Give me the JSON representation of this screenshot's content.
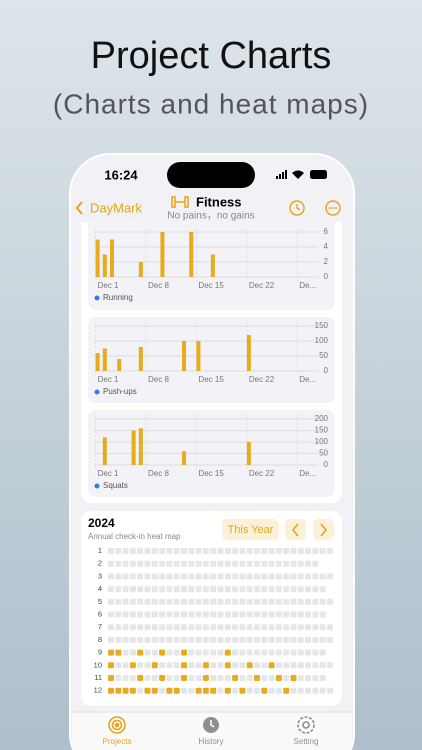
{
  "header": {
    "title": "Project Charts",
    "subtitle": "(Charts and heat maps)"
  },
  "status": {
    "time": "16:24"
  },
  "nav": {
    "back": "DayMark",
    "title": "Fitness",
    "subtitle": "No pains，no gains"
  },
  "chart_data": [
    {
      "type": "bar",
      "x": [
        1,
        2,
        3,
        7,
        10,
        14,
        17
      ],
      "series": [
        {
          "name": "Running",
          "color": "#e6ab1e",
          "legend_color": "#2f7fe6",
          "values": [
            5,
            3,
            5,
            2,
            6,
            6,
            3
          ]
        }
      ],
      "xlim": [
        0.5,
        31.6
      ],
      "xticks": [
        {
          "value": 1,
          "label": "Dec 1"
        },
        {
          "value": 8,
          "label": "Dec 8"
        },
        {
          "value": 15,
          "label": "Dec 15"
        },
        {
          "value": 22,
          "label": "Dec 22"
        },
        {
          "value": 29,
          "label": "De..."
        }
      ],
      "ylim": [
        0,
        6
      ],
      "yticks": [
        0,
        2,
        4,
        6
      ],
      "grid": true
    },
    {
      "type": "bar",
      "x": [
        1,
        2,
        4,
        7,
        13,
        15,
        22
      ],
      "series": [
        {
          "name": "Push-ups",
          "color": "#e6ab1e",
          "legend_color": "#2f7fe6",
          "values": [
            60,
            75,
            40,
            80,
            100,
            100,
            120
          ]
        }
      ],
      "xlim": [
        0.5,
        31.6
      ],
      "xticks": [
        {
          "value": 1,
          "label": "Dec 1"
        },
        {
          "value": 8,
          "label": "Dec 8"
        },
        {
          "value": 15,
          "label": "Dec 15"
        },
        {
          "value": 22,
          "label": "Dec 22"
        },
        {
          "value": 29,
          "label": "De..."
        }
      ],
      "ylim": [
        0,
        150
      ],
      "yticks": [
        0,
        50,
        100,
        150
      ],
      "grid": true
    },
    {
      "type": "bar",
      "x": [
        2,
        6,
        7,
        13,
        22
      ],
      "series": [
        {
          "name": "Squats",
          "color": "#e6ab1e",
          "legend_color": "#2f7fe6",
          "values": [
            120,
            150,
            160,
            60,
            100
          ]
        }
      ],
      "xlim": [
        0.5,
        31.6
      ],
      "xticks": [
        {
          "value": 1,
          "label": "Dec 1"
        },
        {
          "value": 8,
          "label": "Dec 8"
        },
        {
          "value": 15,
          "label": "Dec 15"
        },
        {
          "value": 22,
          "label": "Dec 22"
        },
        {
          "value": 29,
          "label": "De..."
        }
      ],
      "ylim": [
        0,
        200
      ],
      "yticks": [
        0,
        50,
        100,
        150,
        200
      ],
      "grid": true
    }
  ],
  "heatmap": {
    "year": "2024",
    "subtitle": "Annual check-in heat map",
    "range_button": "This Year",
    "color": "#e6ab1e",
    "empty_color": "#e6e6ea",
    "rows": [
      {
        "label": "1",
        "days": 31,
        "checked": []
      },
      {
        "label": "2",
        "days": 29,
        "checked": []
      },
      {
        "label": "3",
        "days": 31,
        "checked": []
      },
      {
        "label": "4",
        "days": 30,
        "checked": []
      },
      {
        "label": "5",
        "days": 31,
        "checked": []
      },
      {
        "label": "6",
        "days": 30,
        "checked": []
      },
      {
        "label": "7",
        "days": 31,
        "checked": []
      },
      {
        "label": "8",
        "days": 31,
        "checked": []
      },
      {
        "label": "9",
        "days": 30,
        "checked": [
          1,
          2,
          5,
          8,
          11,
          17
        ]
      },
      {
        "label": "10",
        "days": 31,
        "checked": [
          1,
          4,
          7,
          11,
          14,
          17,
          20,
          23
        ]
      },
      {
        "label": "11",
        "days": 30,
        "checked": [
          1,
          5,
          8,
          11,
          14,
          18,
          21,
          24,
          26
        ]
      },
      {
        "label": "12",
        "days": 31,
        "checked": [
          1,
          2,
          3,
          4,
          6,
          7,
          9,
          10,
          13,
          14,
          15,
          17,
          19,
          22,
          25
        ]
      }
    ]
  },
  "tabs": [
    "Projects",
    "History",
    "Setting"
  ]
}
